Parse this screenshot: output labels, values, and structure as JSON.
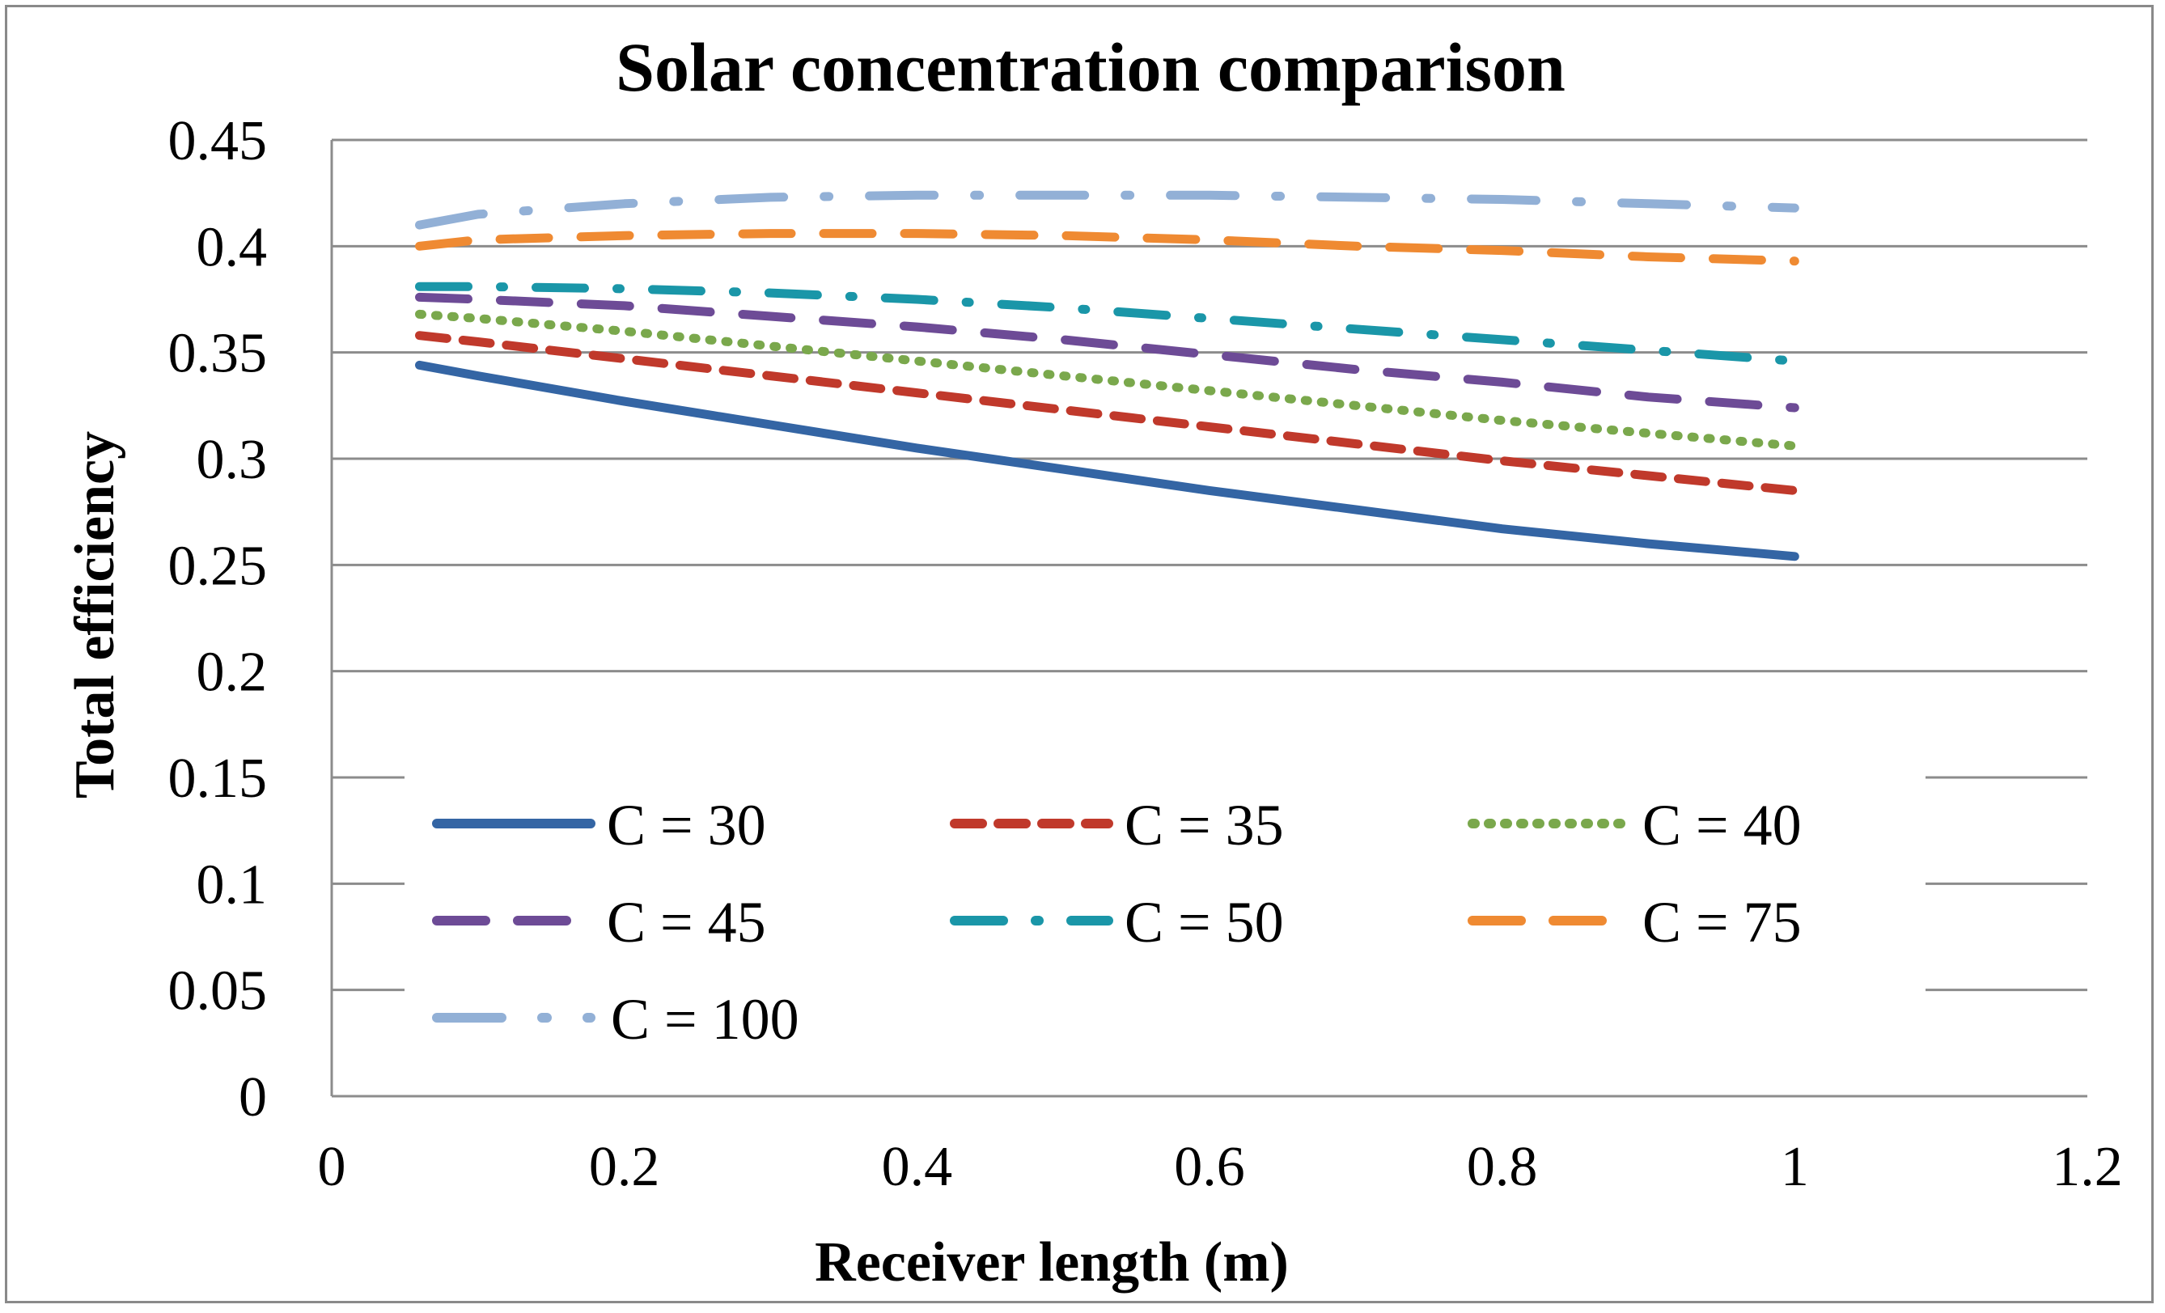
{
  "chart_data": {
    "type": "line",
    "title": "Solar concentration comparison",
    "xlabel": "Receiver length (m)",
    "ylabel": "Total efficiency",
    "xlim": [
      0,
      1.2
    ],
    "ylim": [
      0,
      0.45
    ],
    "xticks": [
      0,
      0.2,
      0.4,
      0.6,
      0.8,
      1,
      1.2
    ],
    "xtick_labels": [
      "0",
      "0.2",
      "0.4",
      "0.6",
      "0.8",
      "1",
      "1.2"
    ],
    "yticks": [
      0,
      0.05,
      0.1,
      0.15,
      0.2,
      0.25,
      0.3,
      0.35,
      0.4,
      0.45
    ],
    "ytick_labels": [
      "0",
      "0.05",
      "0.1",
      "0.15",
      "0.2",
      "0.25",
      "0.3",
      "0.35",
      "0.4",
      "0.45"
    ],
    "grid": true,
    "legend_position": "bottom-left, inside",
    "x": [
      0.06,
      0.1,
      0.2,
      0.3,
      0.4,
      0.5,
      0.6,
      0.7,
      0.8,
      0.9,
      1.0
    ],
    "series": [
      {
        "name": "C = 30",
        "color": "#3465a4",
        "dash": "solid",
        "values": [
          0.344,
          0.339,
          0.327,
          0.316,
          0.305,
          0.295,
          0.285,
          0.276,
          0.267,
          0.26,
          0.254
        ]
      },
      {
        "name": "C = 35",
        "color": "#c0392b",
        "dash": "dash",
        "values": [
          0.358,
          0.355,
          0.347,
          0.339,
          0.331,
          0.323,
          0.315,
          0.307,
          0.299,
          0.292,
          0.285
        ]
      },
      {
        "name": "C = 40",
        "color": "#7aa84c",
        "dash": "dot",
        "values": [
          0.368,
          0.366,
          0.36,
          0.353,
          0.346,
          0.339,
          0.332,
          0.325,
          0.318,
          0.312,
          0.306
        ]
      },
      {
        "name": "C = 45",
        "color": "#6d4b96",
        "dash": "longdash",
        "values": [
          0.376,
          0.375,
          0.372,
          0.367,
          0.362,
          0.356,
          0.349,
          0.342,
          0.336,
          0.329,
          0.324
        ]
      },
      {
        "name": "C = 50",
        "color": "#1a96a8",
        "dash": "dashdot",
        "values": [
          0.381,
          0.381,
          0.38,
          0.378,
          0.375,
          0.371,
          0.366,
          0.361,
          0.356,
          0.351,
          0.346
        ]
      },
      {
        "name": "C = 75",
        "color": "#ef8a32",
        "dash": "longdash",
        "values": [
          0.4,
          0.403,
          0.405,
          0.406,
          0.406,
          0.405,
          0.403,
          0.4,
          0.398,
          0.395,
          0.393
        ]
      },
      {
        "name": "C = 100",
        "color": "#92b0d6",
        "dash": "longdashdot",
        "values": [
          0.41,
          0.415,
          0.42,
          0.423,
          0.424,
          0.424,
          0.424,
          0.423,
          0.422,
          0.42,
          0.418
        ]
      }
    ]
  }
}
